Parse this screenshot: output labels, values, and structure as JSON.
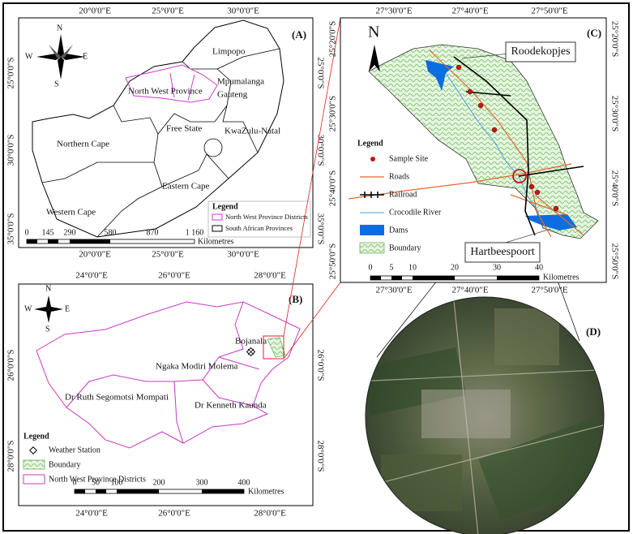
{
  "panel_a": {
    "label": "(A)",
    "lon_ticks": [
      "20°0'0\"E",
      "25°0'0\"E",
      "30°0'0\"E"
    ],
    "lat_ticks": [
      "25°0'0\"S",
      "30°0'0\"S",
      "35°0'0\"S"
    ],
    "compass": [
      "N",
      "E",
      "S",
      "W"
    ],
    "provinces": [
      "Limpopo",
      "Mpumalanga",
      "Gauteng",
      "North West Province",
      "Free State",
      "KwaZulu-Natal",
      "Northern Cape",
      "Eastern Cape",
      "Western Cape"
    ],
    "legend": {
      "title": "Legend",
      "items": [
        "North West Province Districts",
        "South African Provinces"
      ]
    },
    "scale": {
      "ticks": [
        "0",
        "145",
        "290",
        "580",
        "870",
        "1 160"
      ],
      "unit": "Kilometres"
    }
  },
  "panel_b": {
    "label": "(B)",
    "lon_ticks": [
      "24°0'0\"E",
      "26°0'0\"E",
      "28°0'0\"E"
    ],
    "lat_ticks": [
      "26°0'0\"S",
      "28°0'0\"S"
    ],
    "compass": [
      "N",
      "E",
      "S",
      "W"
    ],
    "districts": [
      "Bojanala",
      "Ngaka Modiri Molema",
      "Dr Ruth Segomotsi Mompati",
      "Dr Kenneth Kaunda"
    ],
    "legend": {
      "title": "Legend",
      "items": [
        "Weather Station",
        "Boundary",
        "North West Province Districts"
      ]
    },
    "scale": {
      "ticks": [
        "0",
        "50",
        "100",
        "200",
        "300",
        "400"
      ],
      "unit": "Kilometres"
    }
  },
  "panel_c": {
    "label": "(C)",
    "north": "N",
    "lon_ticks": [
      "27°30'0\"E",
      "27°40'0\"E",
      "27°50'0\"E"
    ],
    "lat_ticks": [
      "25°20'0\"S",
      "25°30'0\"S",
      "25°40'0\"S",
      "25°50'0\"S"
    ],
    "callouts": [
      "Roodekopjes",
      "Hartbeespoort"
    ],
    "legend": {
      "title": "Legend",
      "items": [
        "Sample Site",
        "Roads",
        "Railroad",
        "Crocodile River",
        "Dams",
        "Boundary"
      ]
    },
    "scale": {
      "ticks": [
        "0",
        "5",
        "10",
        "20",
        "30",
        "40"
      ],
      "unit": "Kilometres"
    }
  },
  "panel_d": {
    "label": "(D)"
  }
}
